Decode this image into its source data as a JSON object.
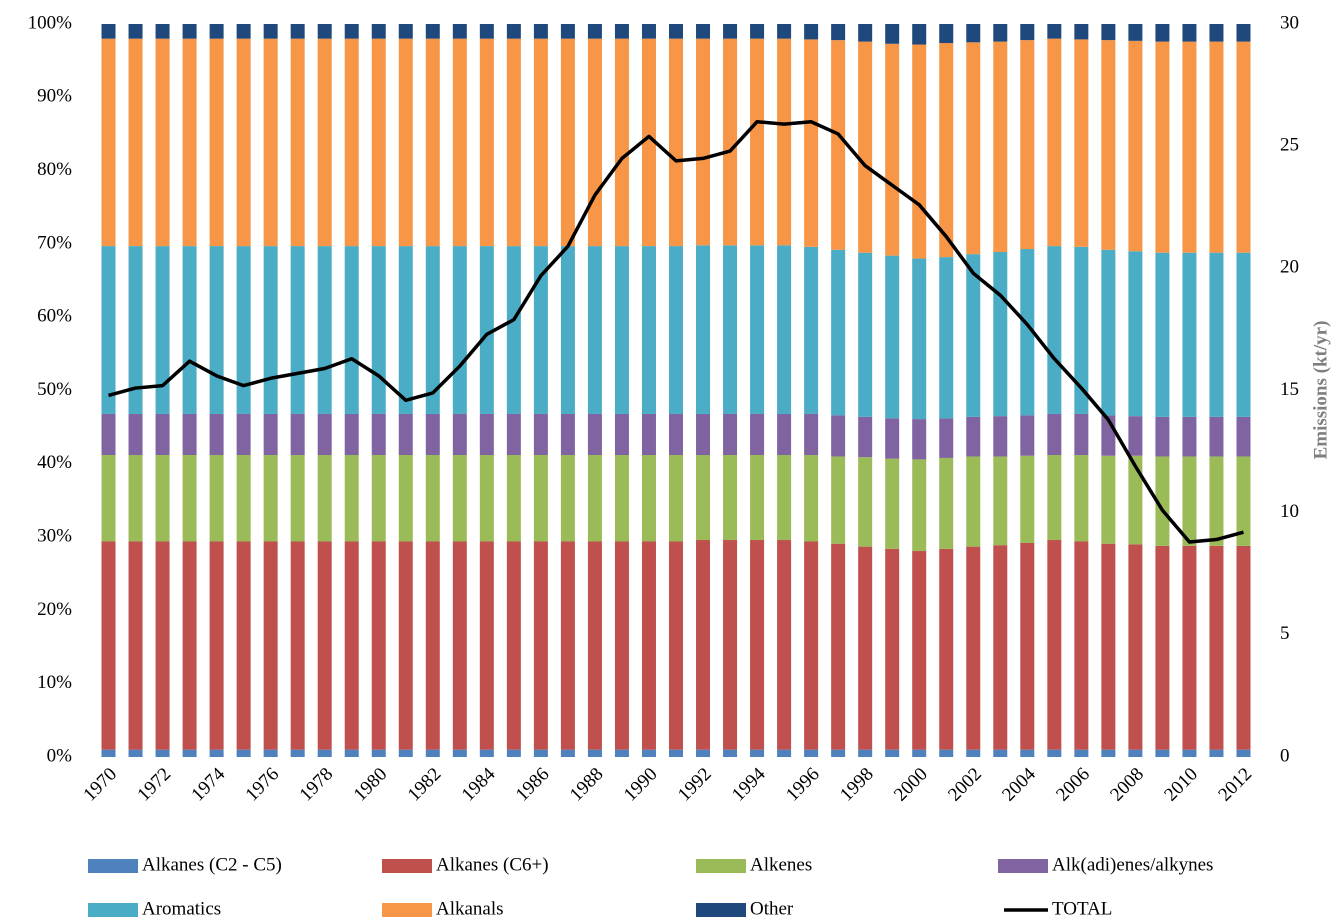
{
  "chart_data": {
    "type": "bar",
    "stacked": true,
    "categories": [
      "1970",
      null,
      "1972",
      null,
      "1974",
      null,
      "1976",
      null,
      "1978",
      null,
      "1980",
      null,
      "1982",
      null,
      "1984",
      null,
      "1986",
      null,
      "1988",
      null,
      "1990",
      null,
      "1992",
      null,
      "1994",
      null,
      "1996",
      null,
      "1998",
      null,
      "2000",
      null,
      "2002",
      null,
      "2004",
      null,
      "2006",
      null,
      "2008",
      null,
      "2010",
      null,
      "2012"
    ],
    "ylim": [
      0,
      100
    ],
    "yticks": [
      {
        "value": 0,
        "label": "0%"
      },
      {
        "value": 10,
        "label": "10%"
      },
      {
        "value": 20,
        "label": "20%"
      },
      {
        "value": 30,
        "label": "30%"
      },
      {
        "value": 40,
        "label": "40%"
      },
      {
        "value": 50,
        "label": "50%"
      },
      {
        "value": 60,
        "label": "60%"
      },
      {
        "value": 70,
        "label": "70%"
      },
      {
        "value": 80,
        "label": "80%"
      },
      {
        "value": 90,
        "label": "90%"
      },
      {
        "value": 100,
        "label": "100%"
      }
    ],
    "y2lim": [
      0,
      30
    ],
    "y2ticks": [
      0,
      5,
      10,
      15,
      20,
      25,
      30
    ],
    "y2label": "Emissions (kt/yr)",
    "series": [
      {
        "name": "Alkanes (C2 - C5)",
        "color": "#4f81bd",
        "values": [
          1,
          1,
          1,
          1,
          1,
          1,
          1,
          1,
          1,
          1,
          1,
          1,
          1,
          1,
          1,
          1,
          1,
          1,
          1,
          1,
          1,
          1,
          1,
          1,
          1,
          1,
          1,
          1,
          1,
          1,
          1,
          1,
          1,
          1,
          1,
          1,
          1,
          1,
          1,
          1,
          1,
          1,
          1
        ]
      },
      {
        "name": "Alkanes (C6+)",
        "color": "#c0504d",
        "values": [
          28.4,
          28.4,
          28.4,
          28.4,
          28.4,
          28.4,
          28.4,
          28.4,
          28.4,
          28.4,
          28.4,
          28.4,
          28.4,
          28.4,
          28.4,
          28.4,
          28.4,
          28.4,
          28.4,
          28.4,
          28.4,
          28.4,
          28.6,
          28.6,
          28.6,
          28.6,
          28.4,
          28.1,
          27.7,
          27.4,
          27.1,
          27.4,
          27.7,
          27.9,
          28.2,
          28.6,
          28.4,
          28.1,
          28.0,
          27.8,
          27.8,
          27.8,
          27.8
        ]
      },
      {
        "name": "Alkenes",
        "color": "#9bbb59",
        "values": [
          11.8,
          11.8,
          11.8,
          11.8,
          11.8,
          11.8,
          11.8,
          11.8,
          11.8,
          11.8,
          11.8,
          11.8,
          11.8,
          11.8,
          11.8,
          11.8,
          11.8,
          11.8,
          11.8,
          11.8,
          11.8,
          11.8,
          11.6,
          11.6,
          11.6,
          11.6,
          11.8,
          11.9,
          12.2,
          12.3,
          12.5,
          12.4,
          12.3,
          12.1,
          11.9,
          11.6,
          11.8,
          12.0,
          12.1,
          12.2,
          12.2,
          12.2,
          12.2
        ]
      },
      {
        "name": "Alk(adi)enes/alkynes",
        "color": "#8064a2",
        "values": [
          5.6,
          5.6,
          5.6,
          5.6,
          5.6,
          5.6,
          5.6,
          5.6,
          5.6,
          5.6,
          5.6,
          5.6,
          5.6,
          5.6,
          5.6,
          5.6,
          5.6,
          5.6,
          5.6,
          5.6,
          5.6,
          5.6,
          5.6,
          5.6,
          5.6,
          5.6,
          5.6,
          5.6,
          5.5,
          5.5,
          5.5,
          5.4,
          5.4,
          5.5,
          5.5,
          5.6,
          5.6,
          5.5,
          5.4,
          5.4,
          5.4,
          5.4,
          5.4
        ]
      },
      {
        "name": "Aromatics",
        "color": "#4bacc6",
        "values": [
          22.9,
          22.9,
          22.9,
          22.9,
          22.9,
          22.9,
          22.9,
          22.9,
          22.9,
          22.9,
          22.9,
          22.9,
          22.9,
          22.9,
          22.9,
          22.9,
          22.9,
          22.9,
          22.9,
          22.9,
          22.9,
          22.9,
          23.0,
          23.0,
          23.0,
          23.0,
          22.8,
          22.6,
          22.4,
          22.2,
          21.9,
          22.0,
          22.2,
          22.4,
          22.7,
          22.9,
          22.8,
          22.6,
          22.5,
          22.4,
          22.4,
          22.4,
          22.4
        ]
      },
      {
        "name": "Alkanals",
        "color": "#f79646",
        "values": [
          28.3,
          28.3,
          28.3,
          28.3,
          28.3,
          28.3,
          28.3,
          28.3,
          28.3,
          28.3,
          28.3,
          28.3,
          28.3,
          28.3,
          28.3,
          28.3,
          28.3,
          28.3,
          28.3,
          28.3,
          28.3,
          28.3,
          28.2,
          28.2,
          28.2,
          28.2,
          28.3,
          28.6,
          28.8,
          28.9,
          29.2,
          29.2,
          28.9,
          28.7,
          28.5,
          28.3,
          28.3,
          28.6,
          28.7,
          28.8,
          28.8,
          28.8,
          28.8
        ]
      },
      {
        "name": "Other",
        "color": "#1f497d",
        "values": [
          2,
          2,
          2,
          2,
          2,
          2,
          2,
          2,
          2,
          2,
          2,
          2,
          2,
          2,
          2,
          2,
          2,
          2,
          2,
          2,
          2,
          2,
          2,
          2,
          2,
          2,
          2.1,
          2.2,
          2.4,
          2.7,
          2.8,
          2.6,
          2.5,
          2.4,
          2.2,
          2.0,
          2.1,
          2.2,
          2.3,
          2.4,
          2.4,
          2.4,
          2.4
        ]
      },
      {
        "name": "TOTAL",
        "color": "#000000",
        "type": "line",
        "axis": "y2",
        "values": [
          14.8,
          15.1,
          15.2,
          16.2,
          15.6,
          15.2,
          15.5,
          15.7,
          15.9,
          16.3,
          15.6,
          14.6,
          14.9,
          16.0,
          17.3,
          17.9,
          19.7,
          20.9,
          23.0,
          24.5,
          25.4,
          24.4,
          24.5,
          24.8,
          26.0,
          25.9,
          26.0,
          25.5,
          24.2,
          23.4,
          22.6,
          21.3,
          19.8,
          18.9,
          17.7,
          16.3,
          15.1,
          13.8,
          11.9,
          10.1,
          8.8,
          8.9,
          9.2
        ]
      }
    ]
  }
}
